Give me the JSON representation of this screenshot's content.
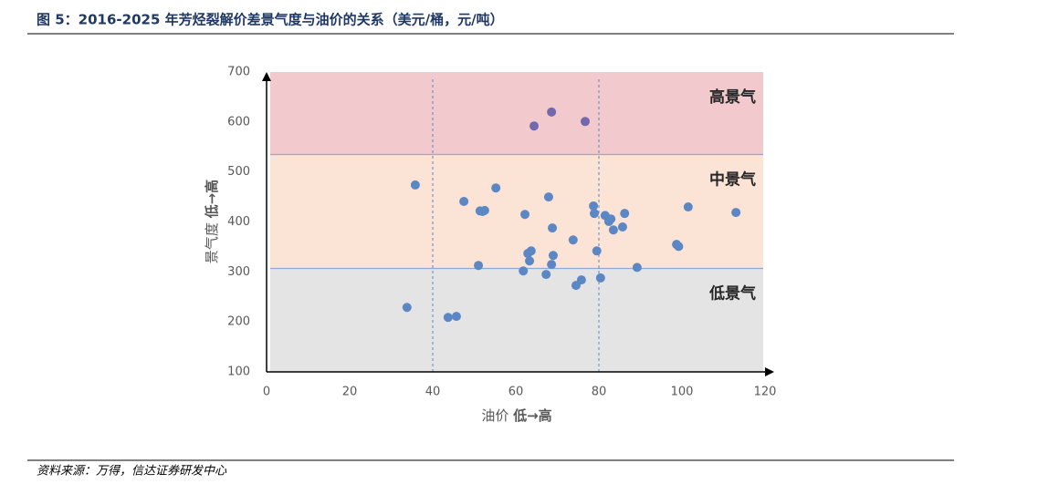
{
  "chart_data": {
    "type": "scatter",
    "title": "图 5：2016-2025 年芳烃裂解价差景气度与油价的关系（美元/桶，元/吨）",
    "source": "资料来源：万得，信达证券研发中心",
    "xlabel": "油价",
    "xlabel_emphasis": "低→高",
    "ylabel": "景气度",
    "ylabel_emphasis": "低→高",
    "xlim": [
      0,
      120
    ],
    "ylim": [
      100,
      700
    ],
    "xticks": [
      0,
      20,
      40,
      60,
      80,
      100,
      120
    ],
    "yticks": [
      100,
      200,
      300,
      400,
      500,
      600,
      700
    ],
    "zones": [
      {
        "label": "高景气",
        "from": 535,
        "to": 700,
        "color": "#f2c9cc"
      },
      {
        "label": "中景气",
        "from": 307,
        "to": 535,
        "color": "#fbe3d6"
      },
      {
        "label": "低景气",
        "from": 100,
        "to": 307,
        "color": "#e4e4e4"
      }
    ],
    "vlines": [
      40,
      80
    ],
    "series": [
      {
        "color": "#7468ad",
        "x": [
          64.4,
          68.6,
          76.7
        ],
        "values": [
          592,
          620,
          601
        ]
      },
      {
        "color": "#5b87c5",
        "x": [
          35.8,
          47.5,
          55.2,
          51.4,
          52.0,
          52.5,
          62.2,
          67.9,
          68.8,
          81.5,
          78.7,
          78.9,
          82.9,
          82.4,
          86.2,
          83.5,
          85.7,
          101.5,
          113.0,
          98.7,
          99.2,
          73.8,
          79.5,
          69.0,
          62.9,
          63.7,
          63.3,
          68.6,
          51.0,
          61.8,
          67.3,
          75.8,
          80.4,
          74.5,
          89.2,
          33.8,
          43.7,
          45.7
        ],
        "values": [
          474,
          441,
          468,
          422,
          421,
          423,
          415,
          450,
          388,
          413,
          432,
          417,
          406,
          401,
          417,
          384,
          390,
          430,
          419,
          355,
          351,
          364,
          342,
          333,
          337,
          342,
          322,
          315,
          313,
          302,
          295,
          284,
          288,
          273,
          309,
          229,
          209,
          211
        ]
      }
    ]
  }
}
